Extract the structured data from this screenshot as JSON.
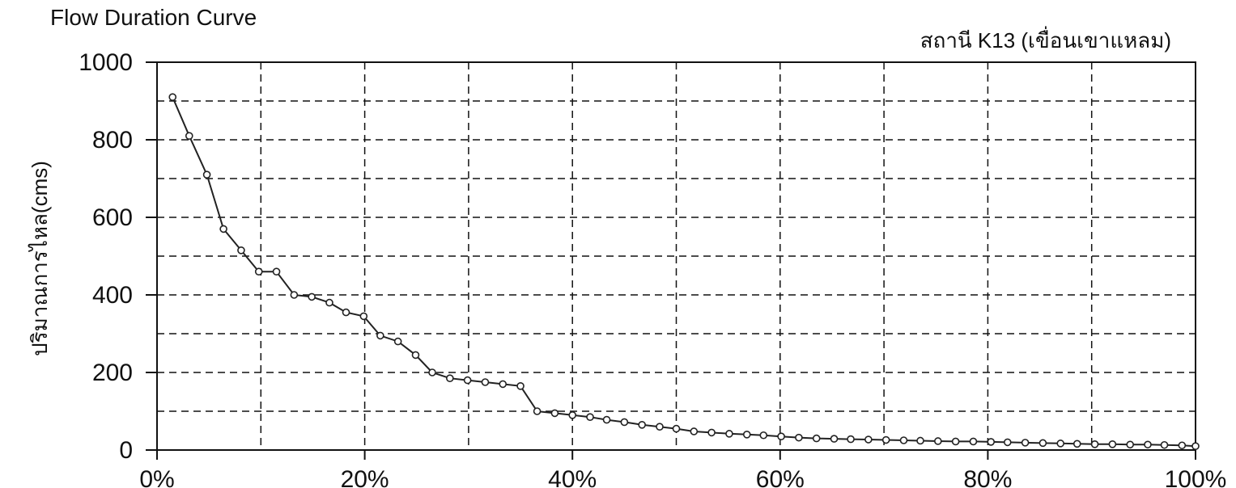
{
  "chart_data": {
    "type": "line",
    "title": "Flow Duration Curve",
    "subtitle": "สถานี K13 (เขื่อนเขาแหลม)",
    "xlabel": "",
    "ylabel": "ปริมาณการไหล(cms)",
    "xlim": [
      0,
      100
    ],
    "ylim": [
      0,
      1000
    ],
    "x_ticks": [
      "0%",
      "20%",
      "40%",
      "60%",
      "80%",
      "100%"
    ],
    "y_ticks": [
      "0",
      "200",
      "400",
      "600",
      "800",
      "1000"
    ],
    "grid": true,
    "legend": "none",
    "series": [
      {
        "color": "#222222",
        "marker": "circle",
        "x": [
          1.5,
          3.1,
          4.8,
          6.4,
          8.1,
          9.8,
          11.5,
          13.2,
          14.9,
          16.6,
          18.2,
          19.9,
          21.5,
          23.2,
          24.9,
          26.5,
          28.2,
          29.9,
          31.6,
          33.3,
          35.0,
          36.6,
          38.3,
          40.0,
          41.7,
          43.3,
          45.0,
          46.7,
          48.4,
          50.0,
          51.7,
          53.4,
          55.1,
          56.8,
          58.4,
          60.1,
          61.8,
          63.5,
          65.2,
          66.8,
          68.5,
          70.2,
          71.9,
          73.5,
          75.2,
          76.9,
          78.6,
          80.3,
          81.9,
          83.6,
          85.3,
          87.0,
          88.6,
          90.3,
          92.0,
          93.7,
          95.4,
          97.0,
          98.7,
          100
        ],
        "y": [
          910,
          810,
          710,
          570,
          515,
          460,
          460,
          400,
          395,
          380,
          355,
          345,
          295,
          280,
          245,
          200,
          185,
          180,
          175,
          170,
          165,
          100,
          95,
          90,
          85,
          78,
          72,
          65,
          60,
          55,
          48,
          45,
          42,
          40,
          38,
          35,
          32,
          30,
          29,
          28,
          27,
          26,
          25,
          24,
          23,
          22,
          22,
          21,
          20,
          19,
          18,
          17,
          16,
          15,
          15,
          14,
          14,
          13,
          12,
          10
        ]
      }
    ]
  }
}
